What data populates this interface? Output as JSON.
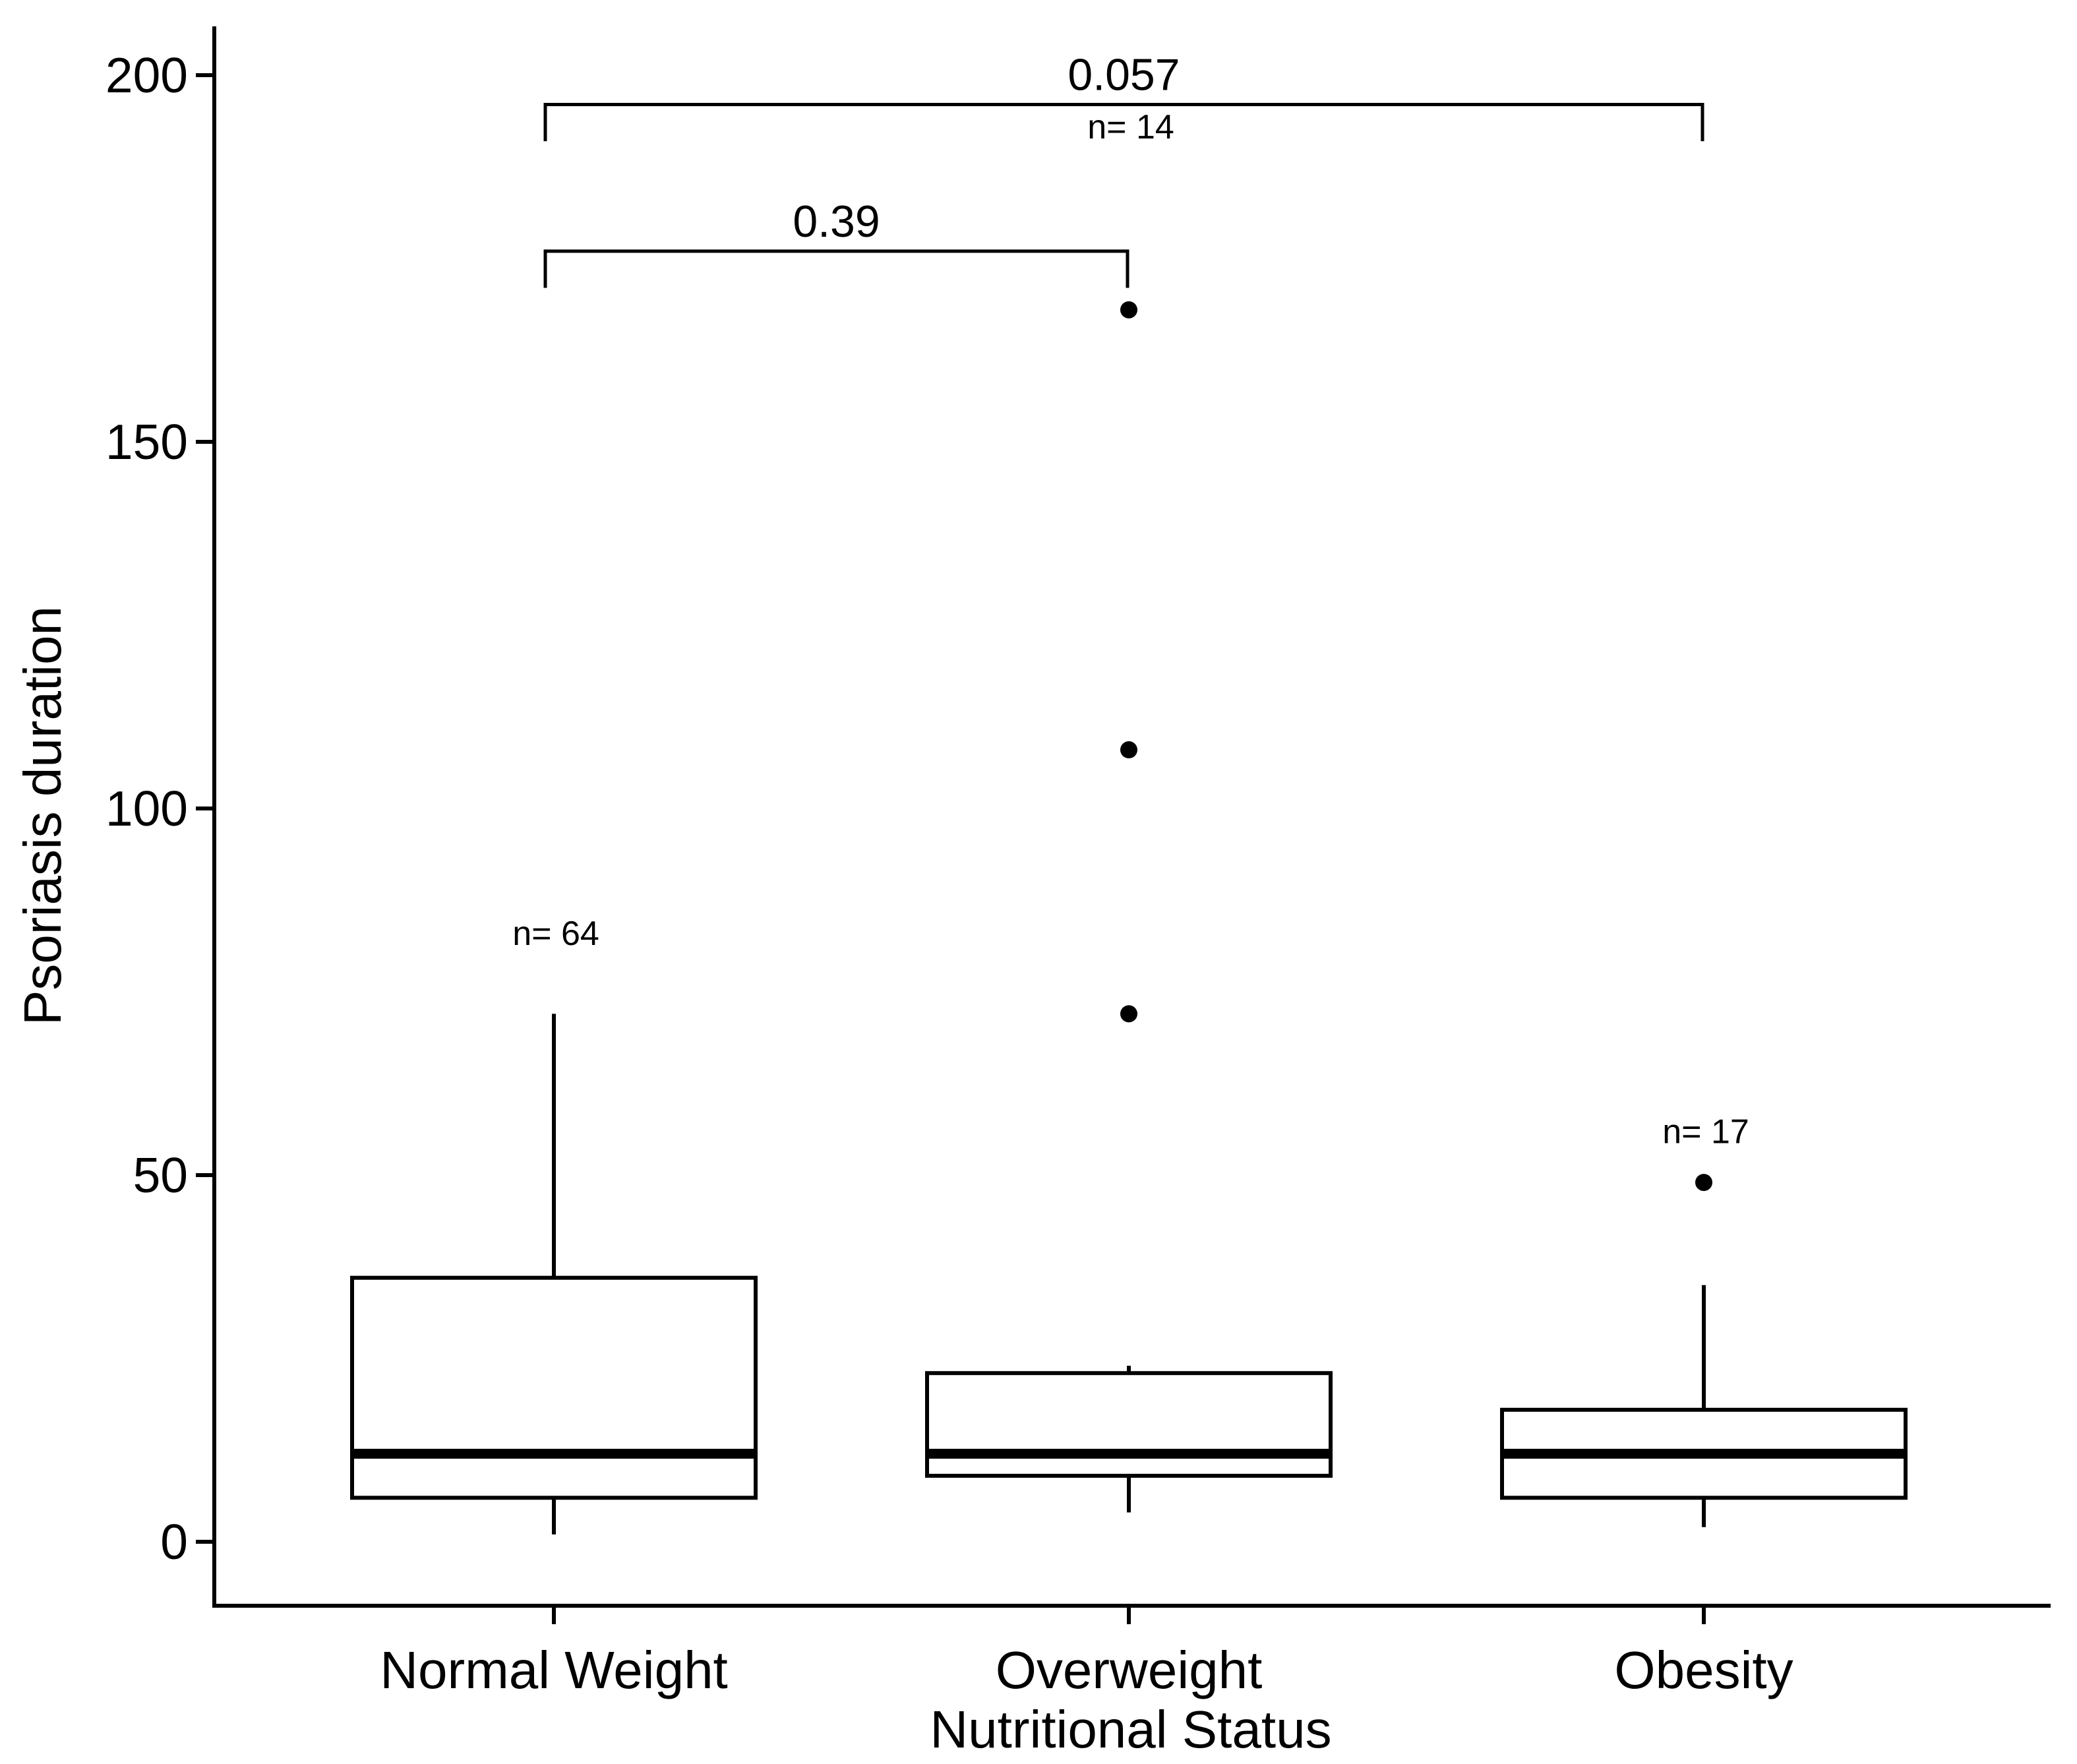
{
  "page": {
    "background": "#ffffff",
    "ink": "#000000"
  },
  "chart_data": {
    "type": "box",
    "title": "",
    "xlabel": "Nutritional Status",
    "ylabel": "Psoriasis duration",
    "categories": [
      "Normal Weight",
      "Overweight",
      "Obesity"
    ],
    "y_ticks": [
      0,
      50,
      100,
      150,
      200
    ],
    "y_tick_labels": [
      "0",
      "50",
      "100",
      "150",
      "200"
    ],
    "ylim": [
      -9,
      207
    ],
    "grid": false,
    "legend_position": "none",
    "series": [
      {
        "category": "Normal Weight",
        "n": 64,
        "n_label": "n= 64",
        "n_label_value": 83,
        "whisker_low": 1,
        "q1": 6,
        "median": 12,
        "q3": 36,
        "whisker_high": 72,
        "outliers": []
      },
      {
        "category": "Overweight",
        "n": 14,
        "n_label": "n= 14",
        "n_label_value": 193,
        "whisker_low": 4,
        "q1": 9,
        "median": 12,
        "q3": 23,
        "whisker_high": 24,
        "outliers": [
          72,
          108,
          168
        ]
      },
      {
        "category": "Obesity",
        "n": 17,
        "n_label": "n= 17",
        "n_label_value": 56,
        "whisker_low": 2,
        "q1": 6,
        "median": 12,
        "q3": 18,
        "whisker_high": 35,
        "outliers": [
          49
        ]
      }
    ],
    "comparisons": [
      {
        "label": "0.39",
        "from": 0,
        "to": 1,
        "bar_value": 176,
        "drop_value": 5
      },
      {
        "label": "0.057",
        "from": 0,
        "to": 2,
        "bar_value": 196,
        "drop_value": 5
      }
    ]
  }
}
